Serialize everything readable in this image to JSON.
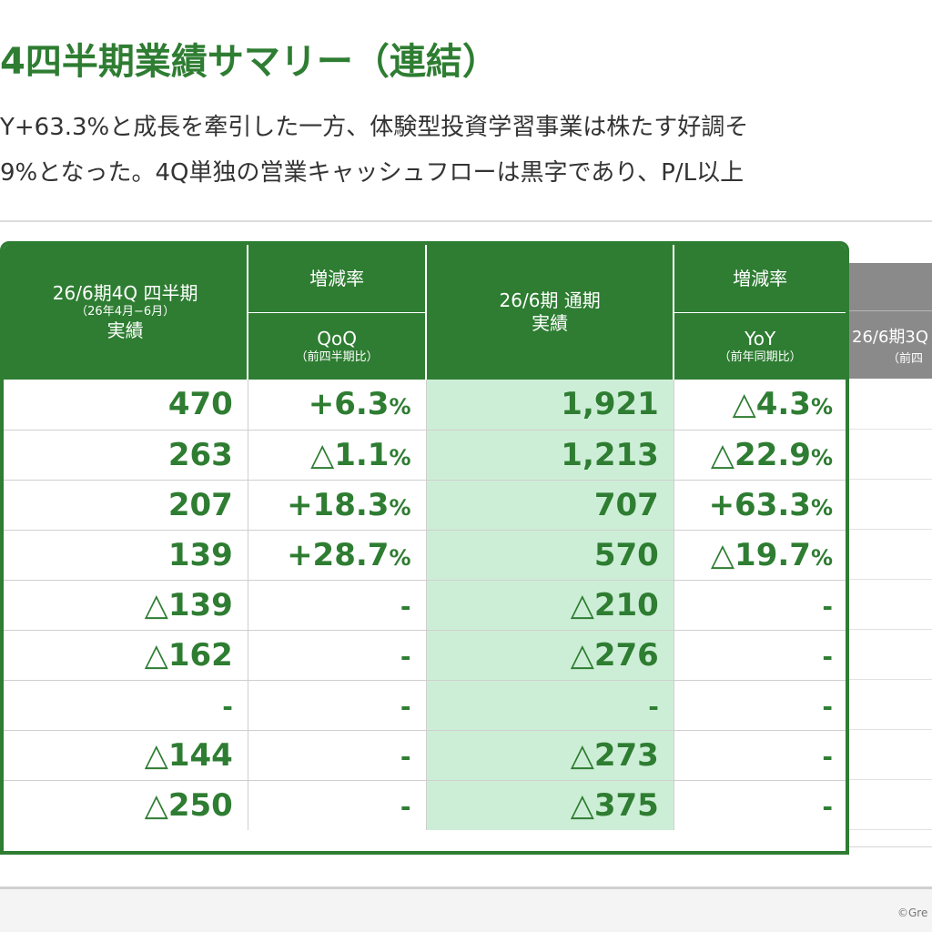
{
  "header": {
    "title": "4四半期業績サマリー（連結）",
    "desc_line1": "Y+63.3%と成長を牽引した一方、体験型投資学習事業は株たす好調そ",
    "desc_line2": "9%となった。4Q単独の営業キャッシュフローは黒字であり、P/L以上"
  },
  "table": {
    "col1": {
      "title": "26/6期4Q 四半期",
      "period": "（26年4月−6月）",
      "kind": "実績"
    },
    "col2": {
      "group": "増減率",
      "label": "QoQ",
      "sub": "（前四半期比）"
    },
    "col3": {
      "title": "26/6期 通期",
      "kind": "実績"
    },
    "col4": {
      "group": "増減率",
      "label": "YoY",
      "sub": "（前年同期比）"
    },
    "rows": [
      {
        "q4": "470",
        "qoq_num": "+6.3",
        "qoq_pct": "%",
        "fy": "1,921",
        "yoy_num": "△4.3",
        "yoy_pct": "%"
      },
      {
        "q4": "263",
        "qoq_num": "△1.1",
        "qoq_pct": "%",
        "fy": "1,213",
        "yoy_num": "△22.9",
        "yoy_pct": "%"
      },
      {
        "q4": "207",
        "qoq_num": "+18.3",
        "qoq_pct": "%",
        "fy": "707",
        "yoy_num": "+63.3",
        "yoy_pct": "%"
      },
      {
        "q4": "139",
        "qoq_num": "+28.7",
        "qoq_pct": "%",
        "fy": "570",
        "yoy_num": "△19.7",
        "yoy_pct": "%"
      },
      {
        "q4": "△139",
        "qoq_num": "-",
        "qoq_pct": "",
        "fy": "△210",
        "yoy_num": "-",
        "yoy_pct": ""
      },
      {
        "q4": "△162",
        "qoq_num": "-",
        "qoq_pct": "",
        "fy": "△276",
        "yoy_num": "-",
        "yoy_pct": ""
      },
      {
        "q4": "-",
        "qoq_num": "-",
        "qoq_pct": "",
        "fy": "-",
        "yoy_num": "-",
        "yoy_pct": ""
      },
      {
        "q4": "△144",
        "qoq_num": "-",
        "qoq_pct": "",
        "fy": "△273",
        "yoy_num": "-",
        "yoy_pct": ""
      },
      {
        "q4": "△250",
        "qoq_num": "-",
        "qoq_pct": "",
        "fy": "△375",
        "yoy_num": "-",
        "yoy_pct": ""
      }
    ]
  },
  "side_column": {
    "title": "26/6期3Q",
    "sub": "（前四"
  },
  "footer": {
    "copyright": "©Gre"
  },
  "colors": {
    "accent": "#2e7d32",
    "highlight": "#cdeed6",
    "side_header": "#8a8a8a"
  }
}
